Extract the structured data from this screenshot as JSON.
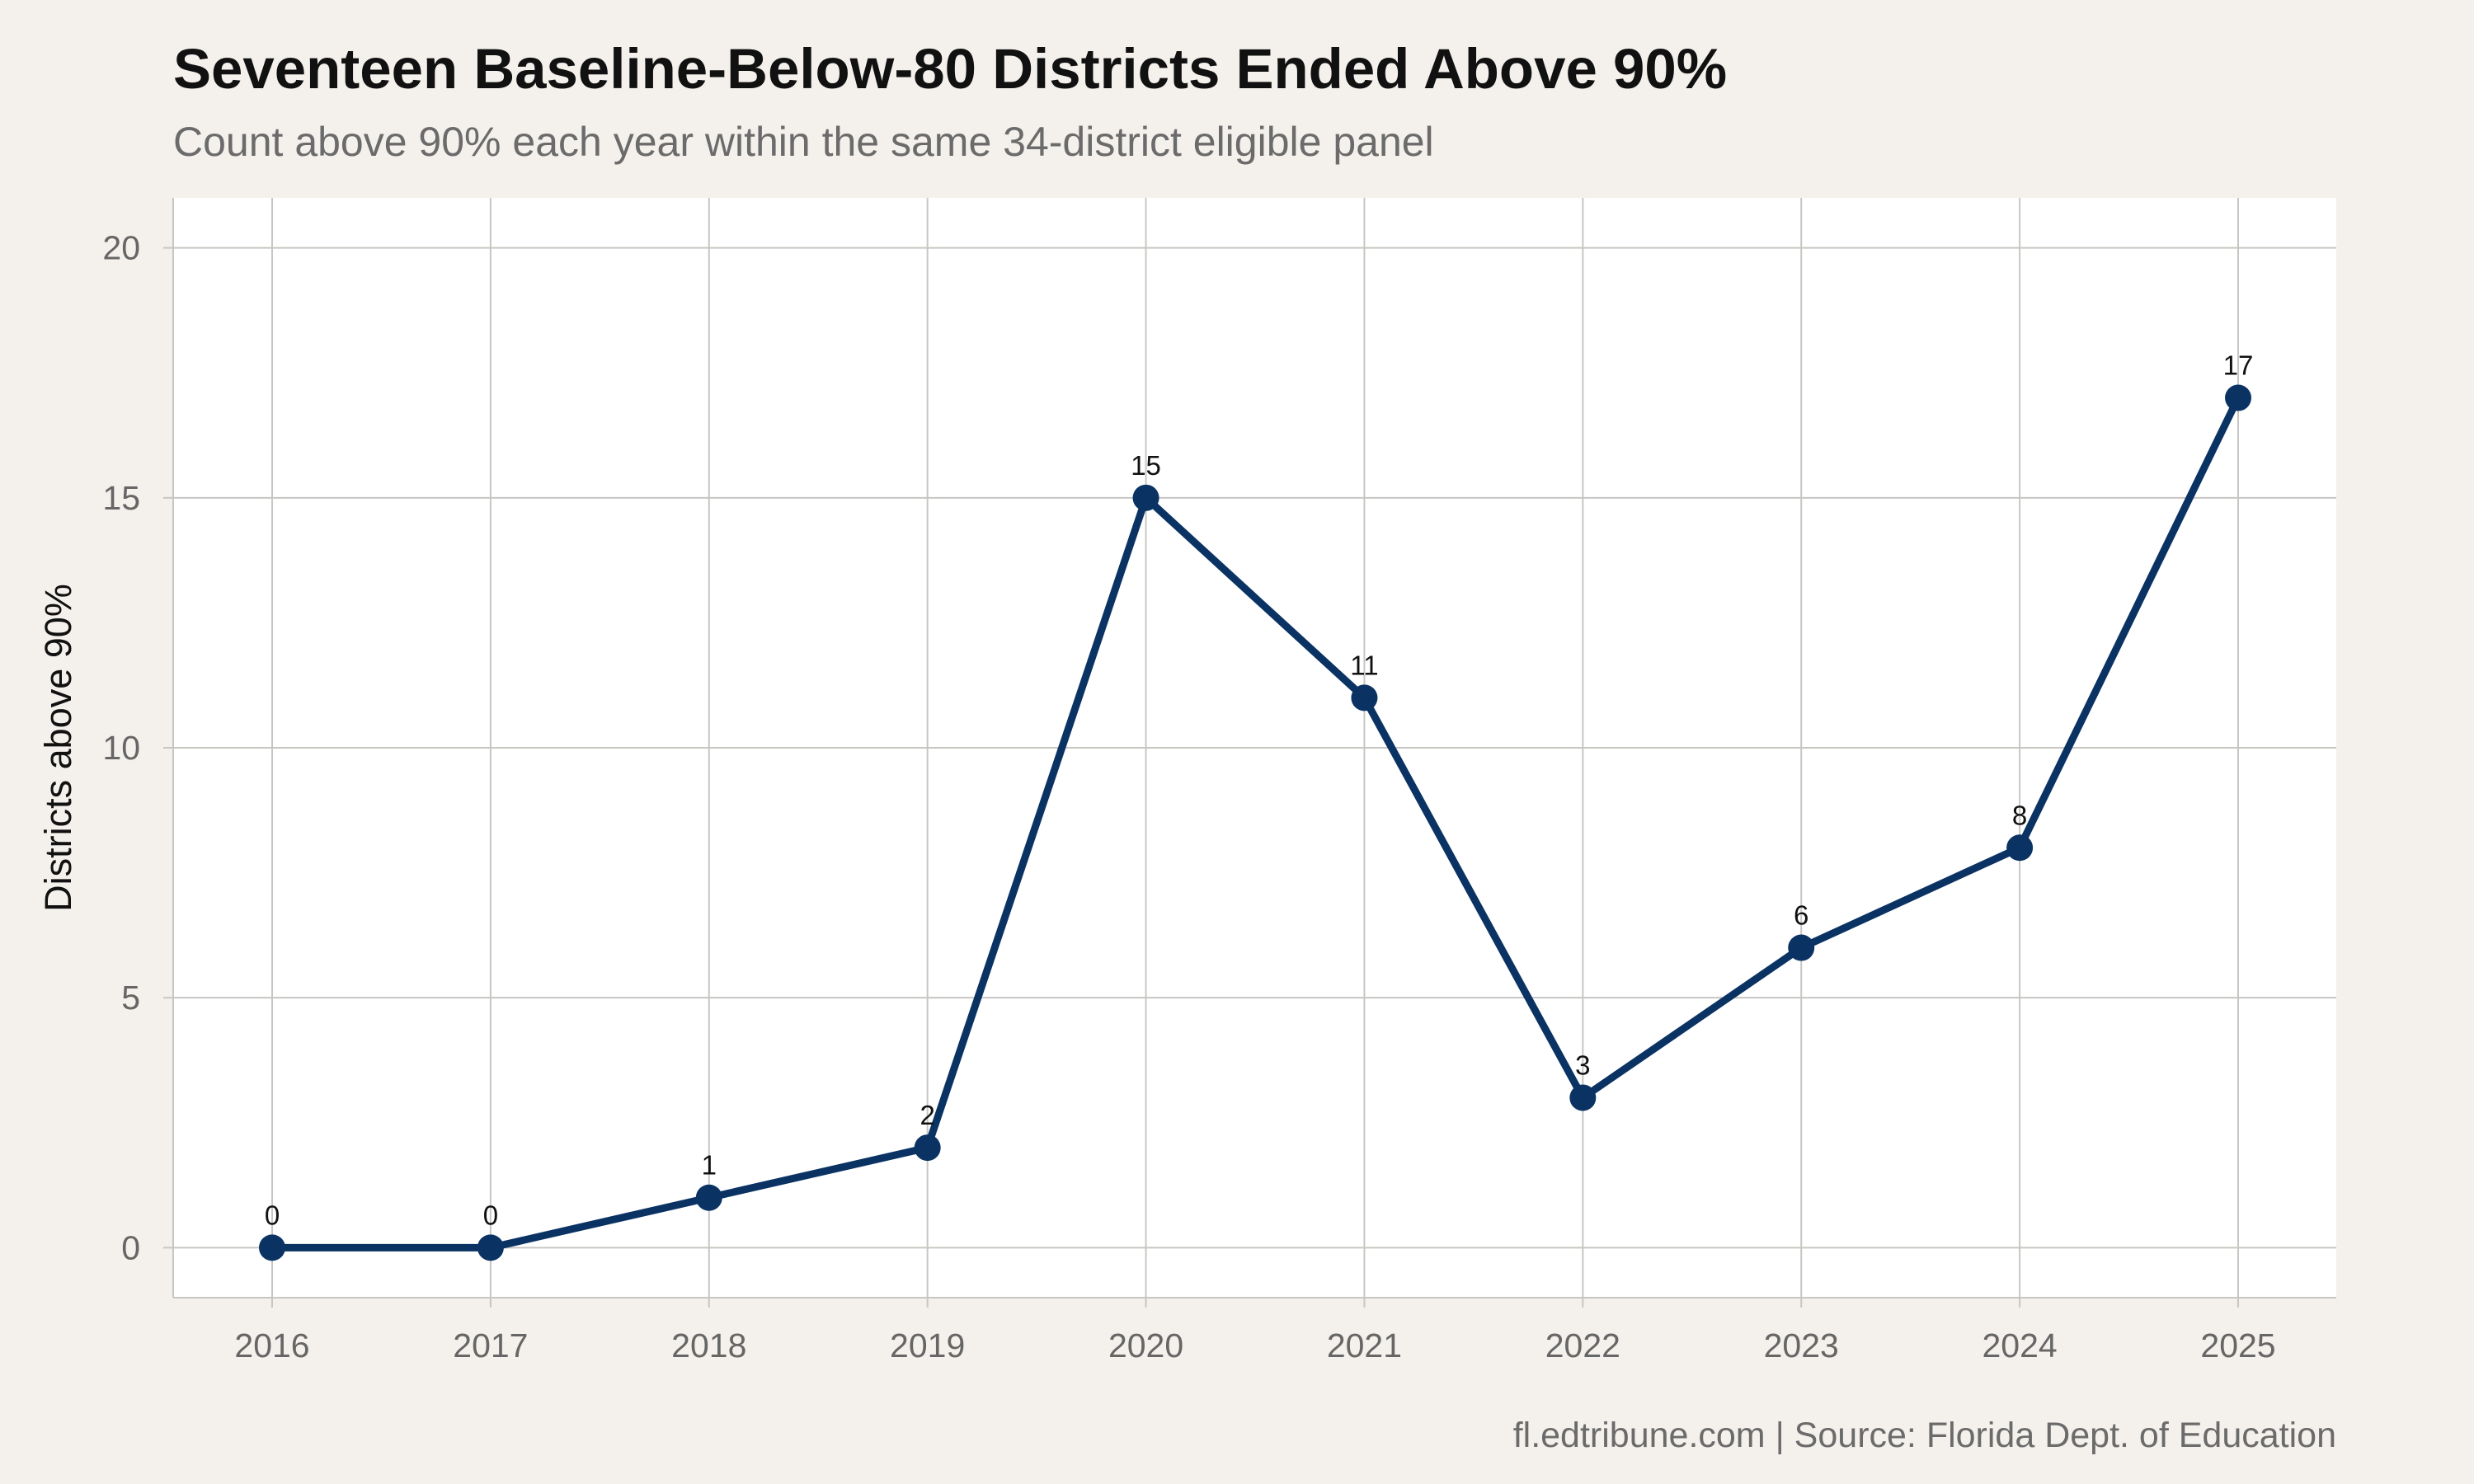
{
  "title": "Seventeen Baseline-Below-80 Districts Ended Above 90%",
  "subtitle": "Count above 90% each year within the same 34-district eligible panel",
  "caption": "fl.edtribune.com | Source: Florida Dept. of Education",
  "colors": {
    "background": "#f4f1ec",
    "panel": "#ffffff",
    "grid": "#c8c6c2",
    "line": "#0a3364"
  },
  "chart_data": {
    "type": "line",
    "title": "Seventeen Baseline-Below-80 Districts Ended Above 90%",
    "subtitle": "Count above 90% each year within the same 34-district eligible panel",
    "xlabel": "",
    "ylabel": "Districts above 90%",
    "x": [
      "2016",
      "2017",
      "2018",
      "2019",
      "2020",
      "2021",
      "2022",
      "2023",
      "2024",
      "2025"
    ],
    "series": [
      {
        "values": [
          0,
          0,
          1,
          2,
          15,
          11,
          3,
          6,
          8,
          17
        ]
      }
    ],
    "data_labels": [
      "0",
      "0",
      "1",
      "2",
      "15",
      "11",
      "3",
      "6",
      "8",
      "17"
    ],
    "yticks": [
      0,
      5,
      10,
      15,
      20
    ],
    "ylim": [
      -1,
      21
    ],
    "grid": true,
    "legend": "none"
  }
}
